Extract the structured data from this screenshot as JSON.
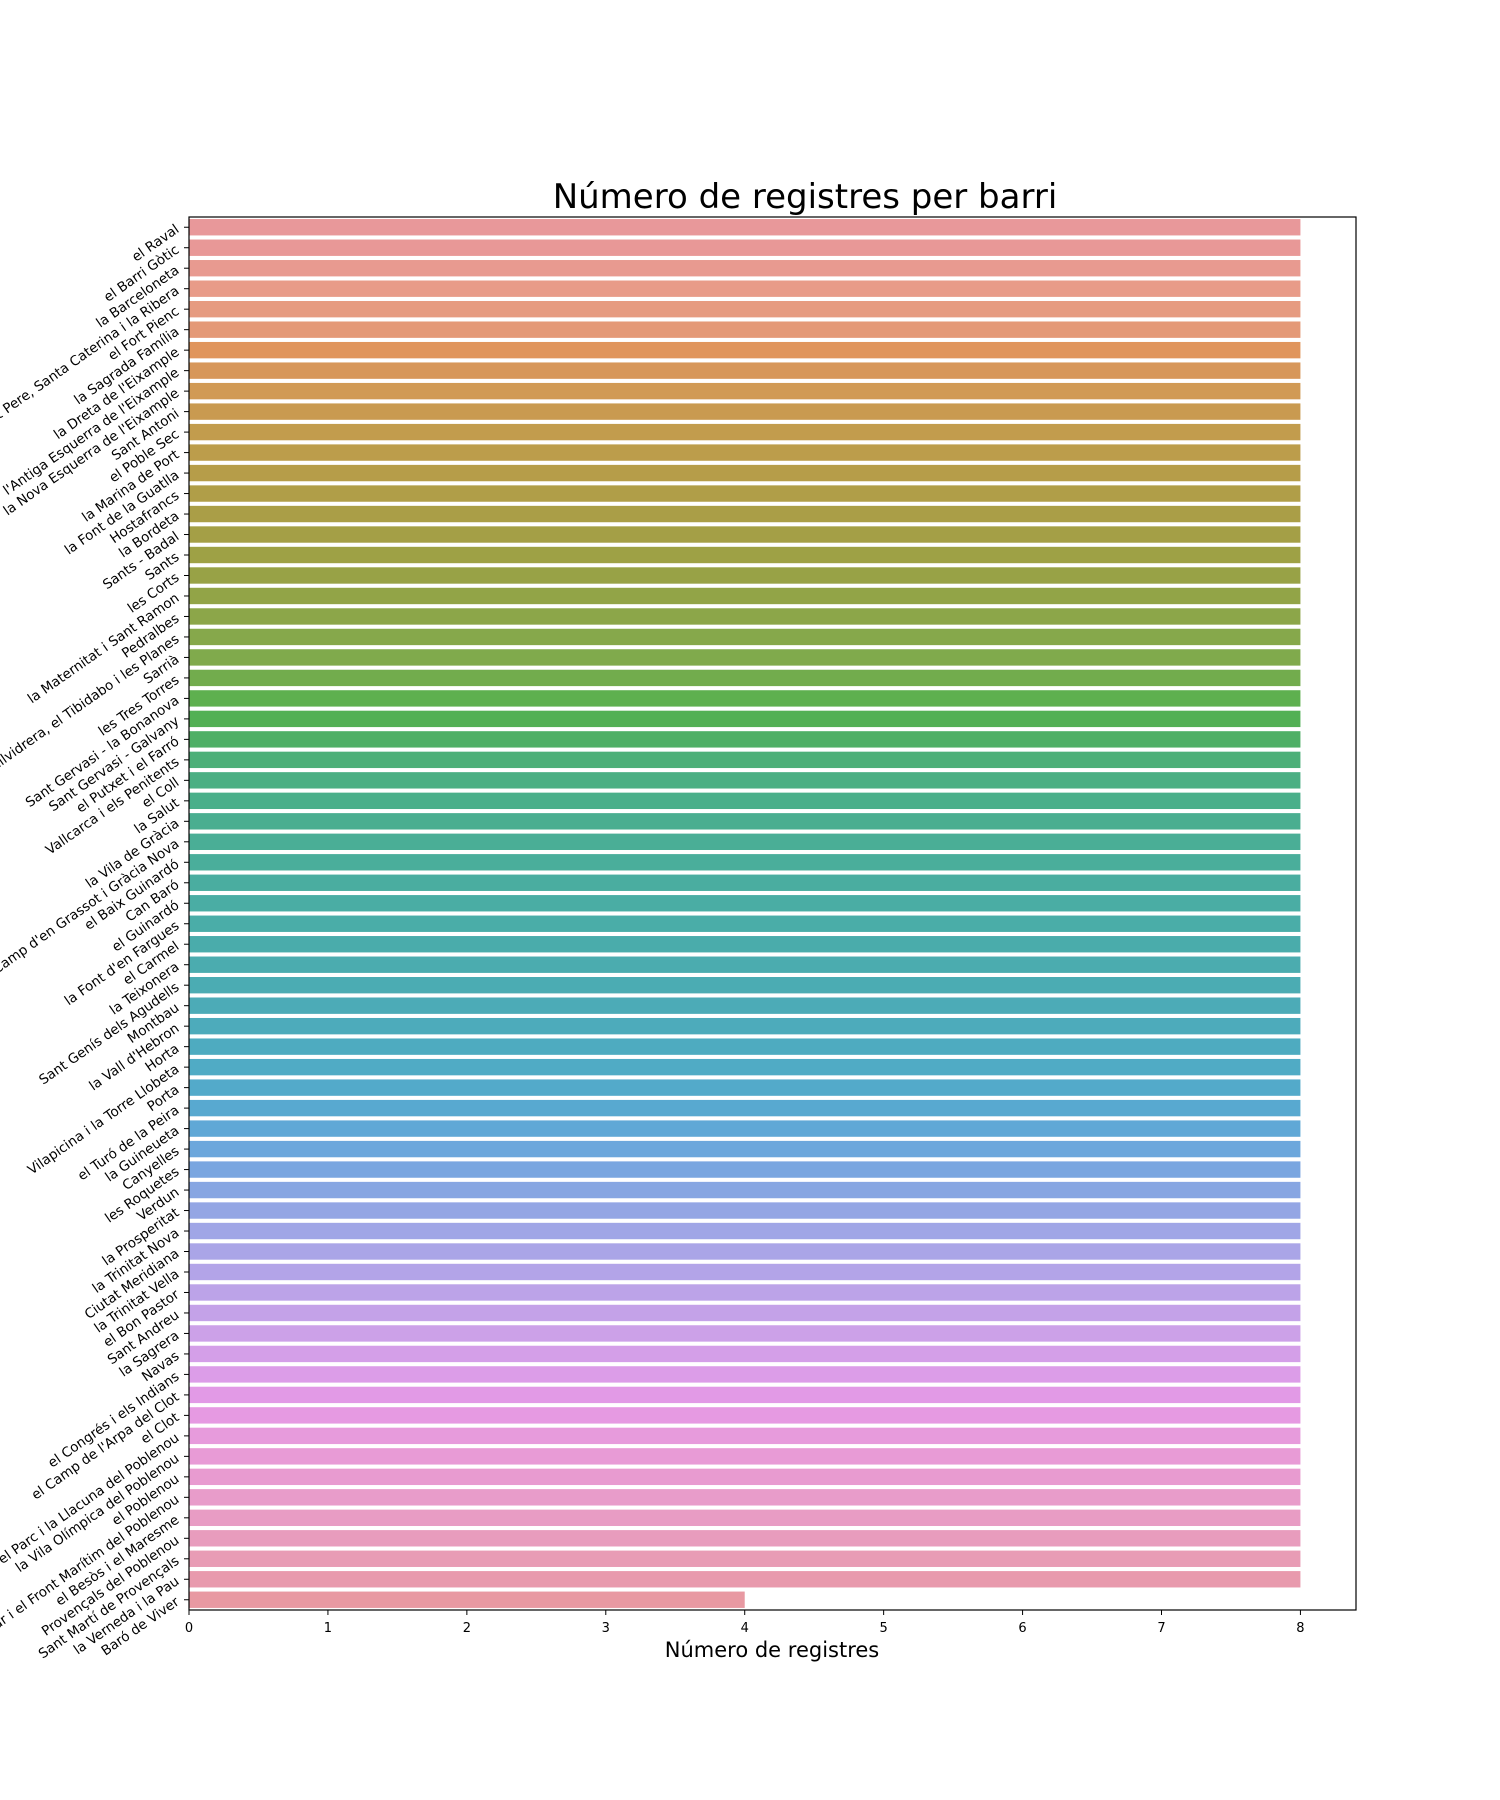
{
  "chart_data": {
    "type": "bar",
    "orientation": "horizontal",
    "title": "Número de registres per barri",
    "xlabel": "Número de registres",
    "ylabel": "",
    "xlim": [
      0,
      8.4
    ],
    "xticks": [
      0,
      1,
      2,
      3,
      4,
      5,
      6,
      7,
      8
    ],
    "grid": false,
    "legend": "none",
    "categories": [
      "el Raval",
      "el Barri Gòtic",
      "la Barceloneta",
      "Sant Pere, Santa Caterina i la Ribera",
      "el Fort Pienc",
      "la Sagrada Família",
      "la Dreta de l'Eixample",
      "l'Antiga Esquerra de l'Eixample",
      "la Nova Esquerra de l'Eixample",
      "Sant Antoni",
      "el Poble Sec",
      "la Marina de Port",
      "la Font de la Guatlla",
      "Hostafrancs",
      "la Bordeta",
      "Sants - Badal",
      "Sants",
      "les Corts",
      "la Maternitat i Sant Ramon",
      "Pedralbes",
      "Vallvidrera, el Tibidabo i les Planes",
      "Sarrià",
      "les Tres Torres",
      "Sant Gervasi - la Bonanova",
      "Sant Gervasi - Galvany",
      "el Putxet i el Farró",
      "Vallcarca i els Penitents",
      "el Coll",
      "la Salut",
      "la Vila de Gràcia",
      "el Camp d'en Grassot i Gràcia Nova",
      "el Baix Guinardó",
      "Can Baró",
      "el Guinardó",
      "la Font d'en Fargues",
      "el Carmel",
      "la Teixonera",
      "Sant Genís dels Agudells",
      "Montbau",
      "la Vall d'Hebron",
      "Horta",
      "Vilapicina i la Torre Llobeta",
      "Porta",
      "el Turó de la Peira",
      "la Guineueta",
      "Canyelles",
      "les Roquetes",
      "Verdun",
      "la Prosperitat",
      "la Trinitat Nova",
      "Ciutat Meridiana",
      "la Trinitat Vella",
      "el Bon Pastor",
      "Sant Andreu",
      "la Sagrera",
      "Navas",
      "el Congrés i els Indians",
      "el Camp de l'Arpa del Clot",
      "el Clot",
      "el Parc i la Llacuna del Poblenou",
      "la Vila Olímpica del Poblenou",
      "el Poblenou",
      "Diagonal Mar i el Front Marítim del Poblenou",
      "el Besòs i el Maresme",
      "Provençals del Poblenou",
      "Sant Martí de Provençals",
      "la Verneda i la Pau",
      "Baró de Viver"
    ],
    "values": [
      8,
      8,
      8,
      8,
      8,
      8,
      8,
      8,
      8,
      8,
      8,
      8,
      8,
      8,
      8,
      8,
      8,
      8,
      8,
      8,
      8,
      8,
      8,
      8,
      8,
      8,
      8,
      8,
      8,
      8,
      8,
      8,
      8,
      8,
      8,
      8,
      8,
      8,
      8,
      8,
      8,
      8,
      8,
      8,
      8,
      8,
      8,
      8,
      8,
      8,
      8,
      8,
      8,
      8,
      8,
      8,
      8,
      8,
      8,
      8,
      8,
      8,
      8,
      8,
      8,
      8,
      8,
      4
    ],
    "colors": [
      "#e8989a",
      "#e89897",
      "#e89a90",
      "#e89b88",
      "#e69b80",
      "#e49977",
      "#e0955c",
      "#d7975a",
      "#d19a55",
      "#c99a50",
      "#c29c4d",
      "#bc9d4b",
      "#b69d49",
      "#b09e48",
      "#aa9e47",
      "#a49f46",
      "#9ea145",
      "#98a246",
      "#92a447",
      "#8ca649",
      "#86a84b",
      "#80aa4c",
      "#72ac4d",
      "#5eb04f",
      "#52b054",
      "#4faf66",
      "#4daf78",
      "#4baf83",
      "#4aaf8a",
      "#4aae90",
      "#4aae96",
      "#4aae9b",
      "#4aada0",
      "#4aada4",
      "#4aada8",
      "#4aacab",
      "#4bacaf",
      "#4bacb3",
      "#4cabb7",
      "#4dabbb",
      "#4eabc0",
      "#50abc5",
      "#53aaca",
      "#58a9d0",
      "#60a8d6",
      "#6ca7dc",
      "#7aa6e0",
      "#87a6e2",
      "#94a6e4",
      "#a0a6e6",
      "#aaa5e7",
      "#b3a4e8",
      "#bca3e8",
      "#c4a2e8",
      "#cca1e8",
      "#d49fe8",
      "#dc9de8",
      "#e29ae6",
      "#e69ae2",
      "#e79bdc",
      "#e89bd6",
      "#e89bd0",
      "#e89cca",
      "#e89cc4",
      "#e89cbd",
      "#e89cb5",
      "#e89aad",
      "#e899a2"
    ]
  }
}
